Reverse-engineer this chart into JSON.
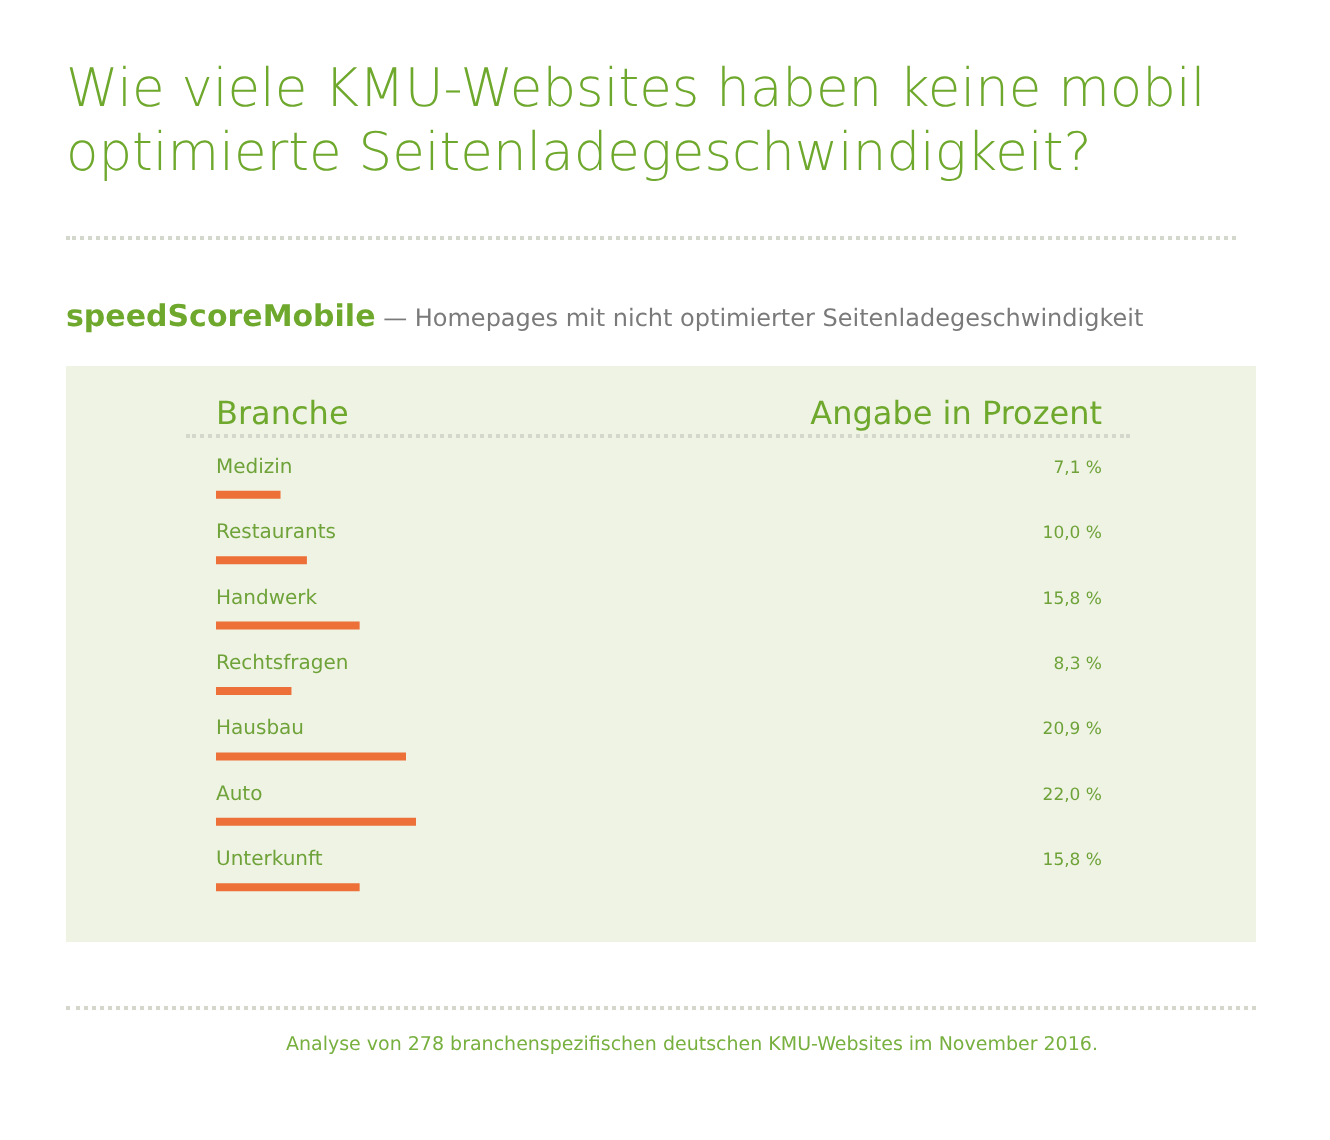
{
  "chart_data": {
    "type": "bar",
    "orientation": "horizontal",
    "title": "Wie viele KMU-Websites haben keine mobil optimierte Seitenladegeschwindigkeit?",
    "subtitle": "speedScoreMobile — Homepages mit nicht optimierter Seitenladegeschwindigkeit",
    "ylabel": "Branche",
    "categories": [
      "Medizin",
      "Restaurants",
      "Handwerk",
      "Rechtsfragen",
      "Hausbau",
      "Auto",
      "Unterkunft"
    ],
    "values": [
      7.1,
      10.0,
      15.8,
      8.3,
      20.9,
      22.0,
      15.8
    ],
    "value_labels": [
      "7,1 %",
      "10,0 %",
      "15,8 %",
      "8,3 %",
      "20,9 %",
      "22,0 %",
      "15,8 %"
    ],
    "color": "#ec7038",
    "tick_labels": "y",
    "annotations": [
      "Angabe in Prozent",
      "Analyse von 278 branchenspezifischen deutschen KMU-Websites im November 2016."
    ]
  }
}
